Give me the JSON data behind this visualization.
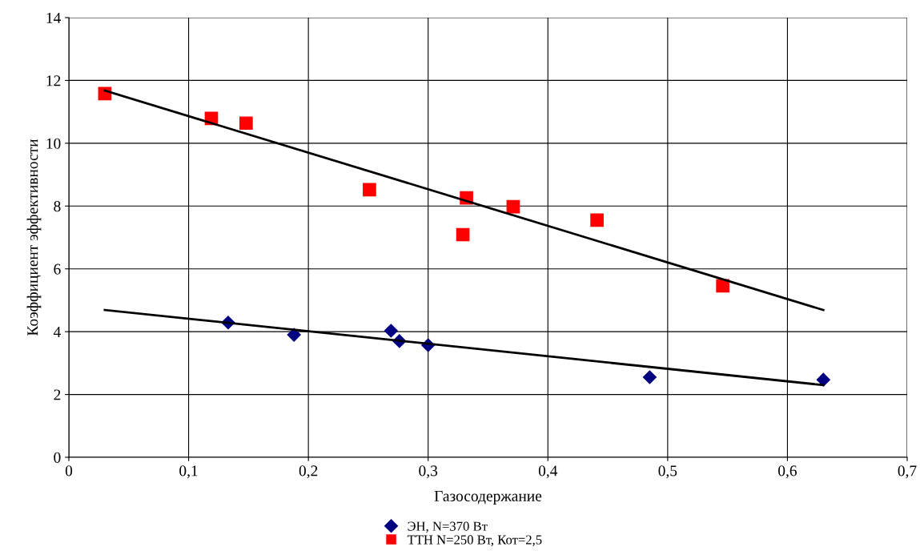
{
  "chart_data": {
    "type": "scatter",
    "xlabel": "Газосодержание",
    "ylabel": "Коэффициент эффективности",
    "xlim": [
      0,
      0.7
    ],
    "xticks": [
      0,
      {
        "value": 0.1,
        "label": "0,1"
      },
      {
        "value": 0.2,
        "label": "0,2"
      },
      {
        "value": 0.3,
        "label": "0,3"
      },
      {
        "value": 0.4,
        "label": "0,4"
      },
      {
        "value": 0.5,
        "label": "0,5"
      },
      {
        "value": 0.6,
        "label": "0,6"
      },
      {
        "value": 0.7,
        "label": "0,7"
      }
    ],
    "ylim": [
      0,
      14
    ],
    "yticks": [
      0,
      2,
      4,
      6,
      8,
      10,
      12,
      14
    ],
    "grid": true,
    "legend": "bottom",
    "series": [
      {
        "name": "ЭН, N=370 Вт",
        "color": "#000080",
        "marker": "diamond",
        "x": [
          0.133,
          0.188,
          0.269,
          0.276,
          0.3,
          0.485,
          0.63
        ],
        "values": [
          4.29,
          3.9,
          4.03,
          3.7,
          3.57,
          2.55,
          2.47
        ]
      },
      {
        "name": "ТТН N=250 Вт, Кот=2,5",
        "color": "#ff0000",
        "marker": "square",
        "x": [
          0.03,
          0.119,
          0.148,
          0.251,
          0.329,
          0.332,
          0.371,
          0.441,
          0.546
        ],
        "values": [
          11.58,
          10.79,
          10.64,
          8.52,
          7.09,
          8.26,
          7.98,
          7.55,
          5.46
        ]
      },
      {
        "type": "line",
        "color": "#000000",
        "marker": "none",
        "x": [
          0.03,
          0.63
        ],
        "values": [
          4.69,
          2.3
        ]
      },
      {
        "type": "line",
        "color": "#000000",
        "marker": "none",
        "x": [
          0.03,
          0.63
        ],
        "values": [
          11.68,
          4.69
        ]
      }
    ]
  }
}
